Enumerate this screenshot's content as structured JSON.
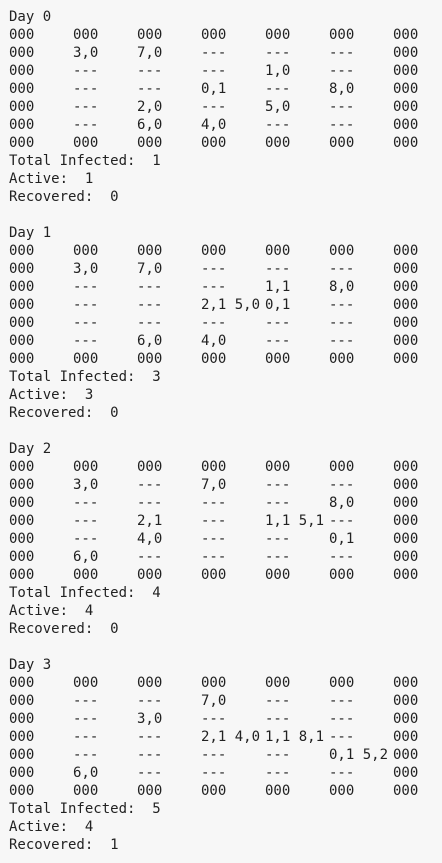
{
  "days": [
    {
      "title": "Day 0",
      "grid": [
        [
          "000",
          "000",
          "000",
          "000",
          "000",
          "000",
          "000"
        ],
        [
          "000",
          "3,0",
          "7,0",
          "---",
          "---",
          "---",
          "000"
        ],
        [
          "000",
          "---",
          "---",
          "---",
          "1,0",
          "---",
          "000"
        ],
        [
          "000",
          "---",
          "---",
          "0,1",
          "---",
          "8,0",
          "000"
        ],
        [
          "000",
          "---",
          "2,0",
          "---",
          "5,0",
          "---",
          "000"
        ],
        [
          "000",
          "---",
          "6,0",
          "4,0",
          "---",
          "---",
          "000"
        ],
        [
          "000",
          "000",
          "000",
          "000",
          "000",
          "000",
          "000"
        ]
      ],
      "total_infected": "Total Infected:  1",
      "active": "Active:  1",
      "recovered": "Recovered:  0"
    },
    {
      "title": "Day 1",
      "grid": [
        [
          "000",
          "000",
          "000",
          "000",
          "000",
          "000",
          "000"
        ],
        [
          "000",
          "3,0",
          "7,0",
          "---",
          "---",
          "---",
          "000"
        ],
        [
          "000",
          "---",
          "---",
          "---",
          "1,1",
          "8,0",
          "000"
        ],
        [
          "000",
          "---",
          "---",
          "2,1 5,0",
          "0,1",
          "---",
          "000"
        ],
        [
          "000",
          "---",
          "---",
          "---",
          "---",
          "---",
          "000"
        ],
        [
          "000",
          "---",
          "6,0",
          "4,0",
          "---",
          "---",
          "000"
        ],
        [
          "000",
          "000",
          "000",
          "000",
          "000",
          "000",
          "000"
        ]
      ],
      "total_infected": "Total Infected:  3",
      "active": "Active:  3",
      "recovered": "Recovered:  0"
    },
    {
      "title": "Day 2",
      "grid": [
        [
          "000",
          "000",
          "000",
          "000",
          "000",
          "000",
          "000"
        ],
        [
          "000",
          "3,0",
          "---",
          "7,0",
          "---",
          "---",
          "000"
        ],
        [
          "000",
          "---",
          "---",
          "---",
          "---",
          "8,0",
          "000"
        ],
        [
          "000",
          "---",
          "2,1",
          "---",
          "1,1 5,1",
          "---",
          "000"
        ],
        [
          "000",
          "---",
          "4,0",
          "---",
          "---",
          "0,1",
          "000"
        ],
        [
          "000",
          "6,0",
          "---",
          "---",
          "---",
          "---",
          "000"
        ],
        [
          "000",
          "000",
          "000",
          "000",
          "000",
          "000",
          "000"
        ]
      ],
      "total_infected": "Total Infected:  4",
      "active": "Active:  4",
      "recovered": "Recovered:  0"
    },
    {
      "title": "Day 3",
      "grid": [
        [
          "000",
          "000",
          "000",
          "000",
          "000",
          "000",
          "000"
        ],
        [
          "000",
          "---",
          "---",
          "7,0",
          "---",
          "---",
          "000"
        ],
        [
          "000",
          "---",
          "3,0",
          "---",
          "---",
          "---",
          "000"
        ],
        [
          "000",
          "---",
          "---",
          "2,1 4,0",
          "1,1 8,1",
          "---",
          "000"
        ],
        [
          "000",
          "---",
          "---",
          "---",
          "---",
          "0,1 5,2",
          "000"
        ],
        [
          "000",
          "6,0",
          "---",
          "---",
          "---",
          "---",
          "000"
        ],
        [
          "000",
          "000",
          "000",
          "000",
          "000",
          "000",
          "000"
        ]
      ],
      "total_infected": "Total Infected:  5",
      "active": "Active:  4",
      "recovered": "Recovered:  1"
    }
  ]
}
